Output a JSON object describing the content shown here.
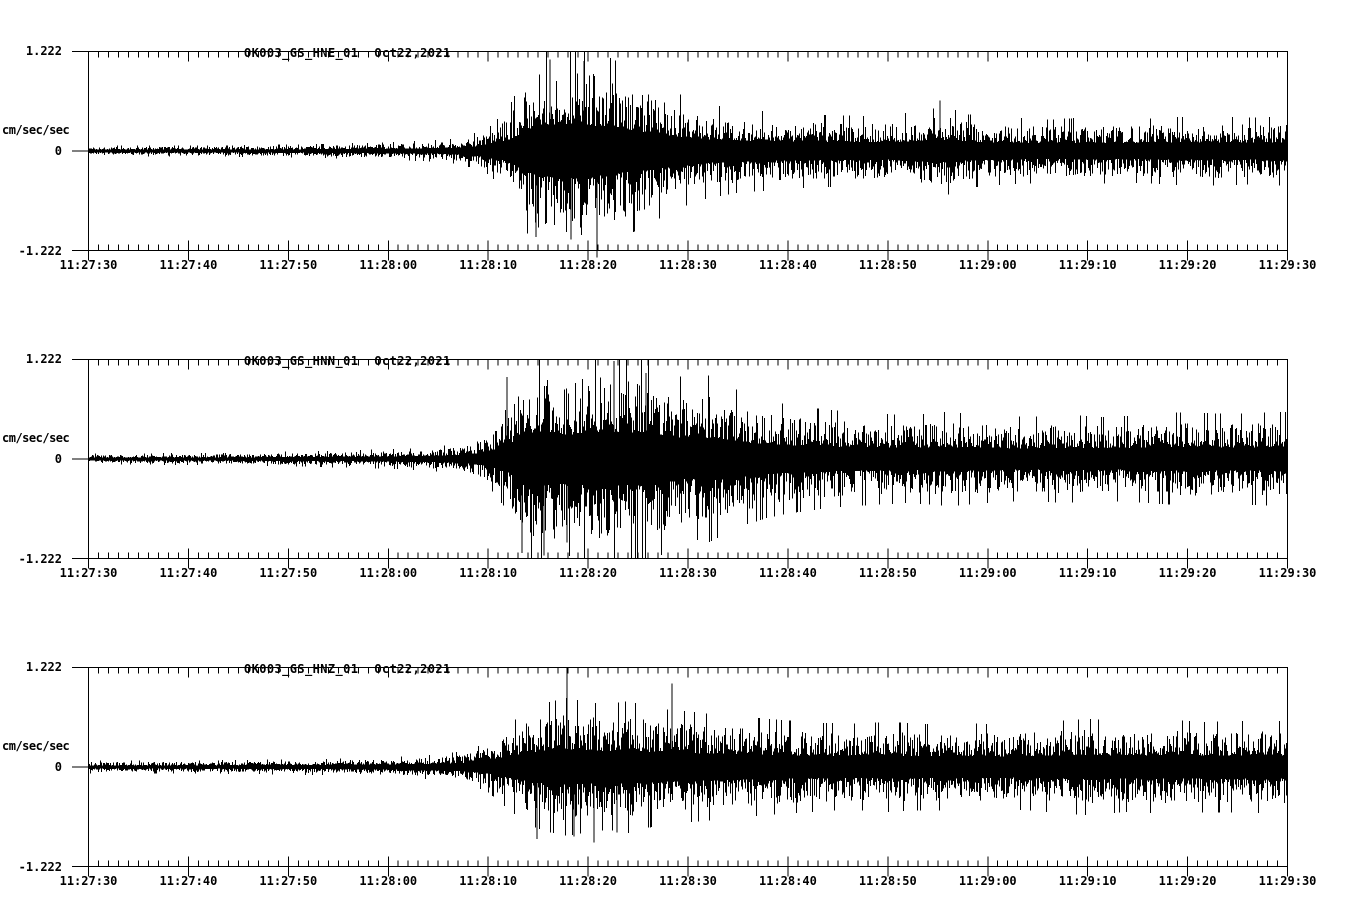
{
  "page": {
    "background": "#ffffff",
    "trace_color": "#000000",
    "axis_color": "#000000"
  },
  "chart_data": {
    "type": "line",
    "subtype": "seismogram-3-component",
    "station": "OK003",
    "date": "Oct22,2021",
    "x_axis": {
      "start_label": "11:27:30",
      "end_label": "11:29:30",
      "duration_s": 120,
      "major_tick_s": 10,
      "minor_tick_s": 1,
      "grid": false,
      "tick_labels": [
        "11:27:30",
        "11:27:40",
        "11:27:50",
        "11:28:00",
        "11:28:10",
        "11:28:20",
        "11:28:30",
        "11:28:40",
        "11:28:50",
        "11:29:00",
        "11:29:10",
        "11:29:20",
        "11:29:30"
      ]
    },
    "y_axis": {
      "min": -1.222,
      "max": 1.222,
      "unit": "cm/sec/sec",
      "tick_values": [
        1.222,
        0,
        -1.222
      ],
      "tick_labels": [
        "1.222",
        "0",
        "-1.222"
      ]
    },
    "series": [
      {
        "station": "OK003_GS_HNE_01",
        "date": "Oct22,2021",
        "envelope": [
          [
            0,
            0.05
          ],
          [
            15,
            0.055
          ],
          [
            25,
            0.07
          ],
          [
            32,
            0.09
          ],
          [
            36,
            0.11
          ],
          [
            38,
            0.15
          ],
          [
            40,
            0.22
          ],
          [
            42,
            0.4
          ],
          [
            44,
            0.8
          ],
          [
            45,
            0.95
          ],
          [
            47,
            1.0
          ],
          [
            49,
            1.05
          ],
          [
            51,
            0.95
          ],
          [
            53,
            0.85
          ],
          [
            55,
            0.75
          ],
          [
            57,
            0.65
          ],
          [
            59,
            0.55
          ],
          [
            62,
            0.45
          ],
          [
            65,
            0.4
          ],
          [
            70,
            0.36
          ],
          [
            75,
            0.34
          ],
          [
            80,
            0.33
          ],
          [
            84,
            0.4
          ],
          [
            86,
            0.42
          ],
          [
            88,
            0.35
          ],
          [
            92,
            0.32
          ],
          [
            96,
            0.3
          ],
          [
            100,
            0.32
          ],
          [
            104,
            0.3
          ],
          [
            108,
            0.32
          ],
          [
            112,
            0.33
          ],
          [
            116,
            0.32
          ],
          [
            120,
            0.33
          ]
        ],
        "spikes": [
          [
            44.8,
            -1.05
          ],
          [
            46.2,
            1.12
          ],
          [
            48.3,
            -1.08
          ],
          [
            49.6,
            1.1
          ],
          [
            50.9,
            -1.3
          ],
          [
            85.2,
            0.62
          ]
        ]
      },
      {
        "station": "OK003_GS_HNN_01",
        "date": "Oct22,2021",
        "envelope": [
          [
            0,
            0.05
          ],
          [
            15,
            0.06
          ],
          [
            25,
            0.08
          ],
          [
            32,
            0.1
          ],
          [
            36,
            0.13
          ],
          [
            38,
            0.17
          ],
          [
            40,
            0.26
          ],
          [
            42,
            0.5
          ],
          [
            43,
            0.8
          ],
          [
            44,
            0.95
          ],
          [
            46,
            1.0
          ],
          [
            48,
            0.92
          ],
          [
            50,
            1.0
          ],
          [
            52,
            1.05
          ],
          [
            54,
            0.95
          ],
          [
            56,
            1.05
          ],
          [
            58,
            0.85
          ],
          [
            60,
            0.75
          ],
          [
            62,
            0.8
          ],
          [
            64,
            0.7
          ],
          [
            66,
            0.62
          ],
          [
            68,
            0.56
          ],
          [
            70,
            0.52
          ],
          [
            74,
            0.47
          ],
          [
            78,
            0.44
          ],
          [
            82,
            0.42
          ],
          [
            86,
            0.45
          ],
          [
            90,
            0.42
          ],
          [
            94,
            0.4
          ],
          [
            98,
            0.42
          ],
          [
            102,
            0.4
          ],
          [
            106,
            0.42
          ],
          [
            110,
            0.45
          ],
          [
            114,
            0.43
          ],
          [
            120,
            0.45
          ]
        ],
        "spikes": [
          [
            41.9,
            1.0
          ],
          [
            43.4,
            -1.15
          ],
          [
            45.6,
            -1.18
          ],
          [
            47.9,
            -1.02
          ],
          [
            52.6,
            1.2
          ],
          [
            55.8,
            1.05
          ]
        ]
      },
      {
        "station": "OK003_GS_HNZ_01",
        "date": "Oct22,2021",
        "envelope": [
          [
            0,
            0.06
          ],
          [
            15,
            0.065
          ],
          [
            25,
            0.08
          ],
          [
            32,
            0.1
          ],
          [
            36,
            0.13
          ],
          [
            38,
            0.16
          ],
          [
            40,
            0.24
          ],
          [
            42,
            0.4
          ],
          [
            44,
            0.55
          ],
          [
            46,
            0.62
          ],
          [
            48,
            0.66
          ],
          [
            50,
            0.62
          ],
          [
            52,
            0.6
          ],
          [
            54,
            0.63
          ],
          [
            56,
            0.58
          ],
          [
            58,
            0.55
          ],
          [
            60,
            0.53
          ],
          [
            64,
            0.49
          ],
          [
            68,
            0.46
          ],
          [
            72,
            0.43
          ],
          [
            76,
            0.41
          ],
          [
            80,
            0.43
          ],
          [
            84,
            0.41
          ],
          [
            88,
            0.42
          ],
          [
            92,
            0.4
          ],
          [
            96,
            0.43
          ],
          [
            100,
            0.46
          ],
          [
            104,
            0.43
          ],
          [
            108,
            0.45
          ],
          [
            112,
            0.43
          ],
          [
            116,
            0.44
          ],
          [
            120,
            0.44
          ]
        ],
        "spikes": [
          [
            44.9,
            -0.88
          ],
          [
            47.9,
            1.21
          ],
          [
            48.6,
            -0.85
          ],
          [
            50.6,
            -0.92
          ],
          [
            52.9,
            -0.8
          ],
          [
            58.4,
            1.02
          ]
        ]
      }
    ]
  }
}
